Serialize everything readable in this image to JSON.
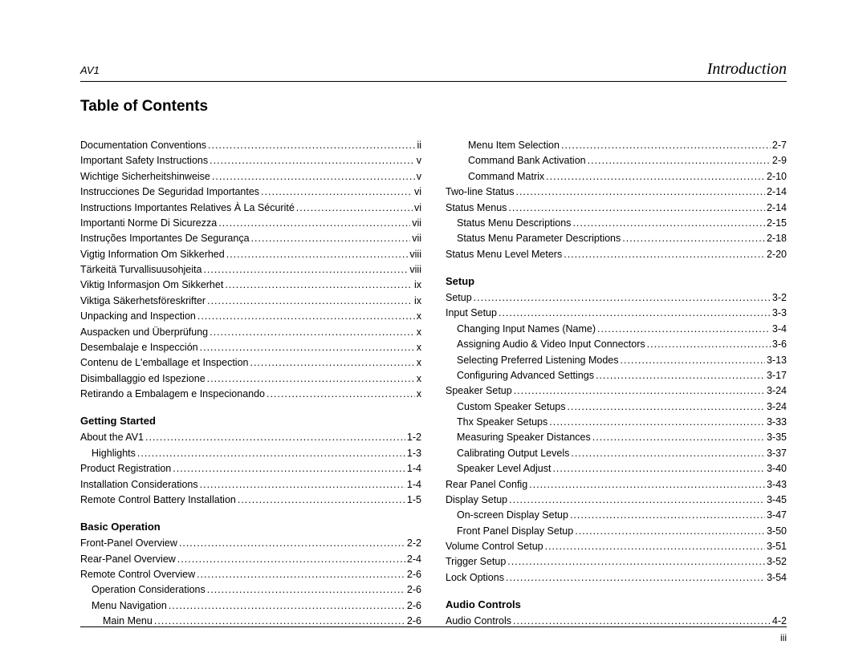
{
  "header": {
    "left": "AV1",
    "right": "Introduction"
  },
  "title": "Table of Contents",
  "footer": {
    "page": "iii"
  },
  "left_column": {
    "front_matter": [
      {
        "label": "Documentation Conventions",
        "page": "ii",
        "indent": 0
      },
      {
        "label": "Important Safety Instructions",
        "page": "v",
        "indent": 0
      },
      {
        "label": "Wichtige Sicherheitshinweise",
        "page": "v",
        "indent": 0
      },
      {
        "label": "Instrucciones De Seguridad Importantes",
        "page": "vi",
        "indent": 0
      },
      {
        "label": "Instructions Importantes Relatives À La Sécurité",
        "page": "vi",
        "indent": 0
      },
      {
        "label": "Importanti Norme Di Sicurezza",
        "page": "vii",
        "indent": 0
      },
      {
        "label": "Instruções Importantes De Segurança",
        "page": "vii",
        "indent": 0
      },
      {
        "label": "Vigtig Information Om Sikkerhed",
        "page": "viii",
        "indent": 0
      },
      {
        "label": "Tärkeitä Turvallisuusohjeita",
        "page": "viii",
        "indent": 0
      },
      {
        "label": "Viktig Informasjon Om Sikkerhet",
        "page": "ix",
        "indent": 0
      },
      {
        "label": "Viktiga Säkerhetsföreskrifter",
        "page": "ix",
        "indent": 0
      },
      {
        "label": "Unpacking and Inspection",
        "page": "x",
        "indent": 0
      },
      {
        "label": "Auspacken und Überprüfung",
        "page": "x",
        "indent": 0
      },
      {
        "label": "Desembalaje e Inspección",
        "page": "x",
        "indent": 0
      },
      {
        "label": "Contenu de L'emballage et Inspection",
        "page": "x",
        "indent": 0
      },
      {
        "label": "Disimballaggio ed Ispezione",
        "page": "x",
        "indent": 0
      },
      {
        "label": "Retirando a Embalagem e Inspecionando",
        "page": "x",
        "indent": 0
      }
    ],
    "getting_started_heading": "Getting Started",
    "getting_started": [
      {
        "label": "About the AV1",
        "page": "1-2",
        "indent": 0
      },
      {
        "label": "Highlights",
        "page": "1-3",
        "indent": 1
      },
      {
        "label": "Product Registration",
        "page": "1-4",
        "indent": 0
      },
      {
        "label": "Installation Considerations",
        "page": "1-4",
        "indent": 0
      },
      {
        "label": "Remote Control Battery Installation",
        "page": "1-5",
        "indent": 0
      }
    ],
    "basic_operation_heading": "Basic Operation",
    "basic_operation": [
      {
        "label": "Front-Panel Overview",
        "page": "2-2",
        "indent": 0
      },
      {
        "label": "Rear-Panel Overview",
        "page": "2-4",
        "indent": 0
      },
      {
        "label": "Remote Control Overview",
        "page": "2-6",
        "indent": 0
      },
      {
        "label": "Operation Considerations",
        "page": "2-6",
        "indent": 1
      },
      {
        "label": "Menu Navigation",
        "page": "2-6",
        "indent": 1
      },
      {
        "label": "Main Menu",
        "page": "2-6",
        "indent": 2
      }
    ]
  },
  "right_column": {
    "continuation": [
      {
        "label": "Menu Item Selection",
        "page": "2-7",
        "indent": 2
      },
      {
        "label": "Command Bank Activation",
        "page": "2-9",
        "indent": 2
      },
      {
        "label": "Command Matrix",
        "page": "2-10",
        "indent": 2
      },
      {
        "label": "Two-line Status",
        "page": "2-14",
        "indent": 0
      },
      {
        "label": "Status Menus",
        "page": "2-14",
        "indent": 0
      },
      {
        "label": "Status Menu Descriptions",
        "page": "2-15",
        "indent": 1
      },
      {
        "label": "Status Menu Parameter Descriptions",
        "page": "2-18",
        "indent": 1
      },
      {
        "label": "Status Menu Level Meters",
        "page": "2-20",
        "indent": 0
      }
    ],
    "setup_heading": "Setup",
    "setup": [
      {
        "label": "Setup",
        "page": "3-2",
        "indent": 0
      },
      {
        "label": "Input Setup",
        "page": "3-3",
        "indent": 0
      },
      {
        "label": "Changing Input Names (Name)",
        "page": "3-4",
        "indent": 1
      },
      {
        "label": "Assigning Audio & Video Input Connectors",
        "page": "3-6",
        "indent": 1
      },
      {
        "label": "Selecting Preferred Listening Modes",
        "page": "3-13",
        "indent": 1
      },
      {
        "label": "Configuring Advanced Settings",
        "page": "3-17",
        "indent": 1
      },
      {
        "label": "Speaker Setup",
        "page": "3-24",
        "indent": 0
      },
      {
        "label": "Custom Speaker Setups",
        "page": "3-24",
        "indent": 1
      },
      {
        "label": "Thx Speaker Setups",
        "page": "3-33",
        "indent": 1
      },
      {
        "label": "Measuring Speaker Distances",
        "page": "3-35",
        "indent": 1
      },
      {
        "label": "Calibrating Output Levels",
        "page": "3-37",
        "indent": 1
      },
      {
        "label": "Speaker Level Adjust",
        "page": "3-40",
        "indent": 1
      },
      {
        "label": "Rear Panel Config",
        "page": "3-43",
        "indent": 0
      },
      {
        "label": "Display Setup",
        "page": "3-45",
        "indent": 0
      },
      {
        "label": "On-screen Display Setup",
        "page": "3-47",
        "indent": 1
      },
      {
        "label": "Front Panel Display Setup",
        "page": "3-50",
        "indent": 1
      },
      {
        "label": "Volume Control Setup",
        "page": "3-51",
        "indent": 0
      },
      {
        "label": "Trigger Setup",
        "page": "3-52",
        "indent": 0
      },
      {
        "label": "Lock Options",
        "page": "3-54",
        "indent": 0
      }
    ],
    "audio_controls_heading": "Audio Controls",
    "audio_controls": [
      {
        "label": "Audio Controls",
        "page": "4-2",
        "indent": 0
      }
    ]
  }
}
